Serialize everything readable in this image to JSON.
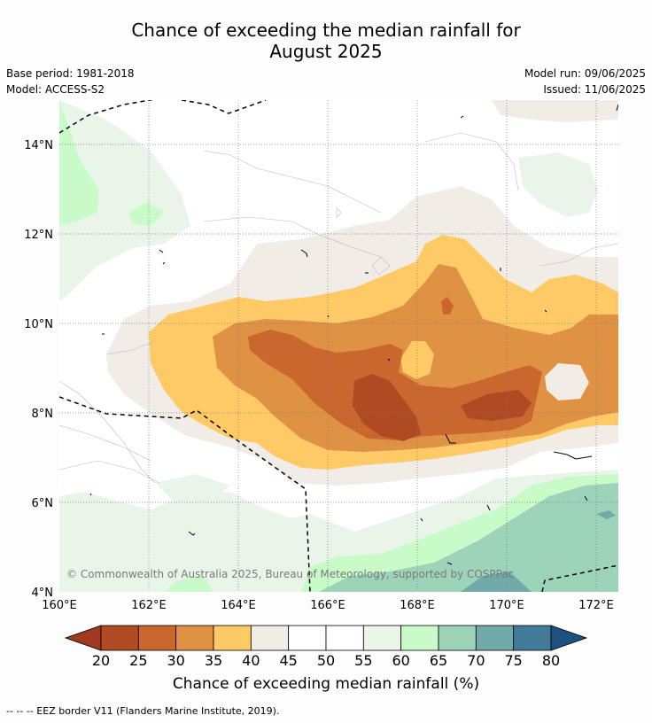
{
  "title": {
    "line1": "Chance of exceeding the median rainfall for",
    "line2": "August 2025"
  },
  "meta": {
    "base_period": "Base period: 1981-2018",
    "model": "Model: ACCESS-S2",
    "model_run": "Model run: 09/06/2025",
    "issued": "Issued: 11/06/2025"
  },
  "copyright": "© Commonwealth of Australia 2025, Bureau of Meteorology, supported by COSPPac",
  "axes": {
    "lat_labels": [
      "14°N",
      "12°N",
      "10°N",
      "8°N",
      "6°N",
      "4°N"
    ],
    "lon_labels": [
      "160°E",
      "162°E",
      "164°E",
      "166°E",
      "168°E",
      "170°E",
      "172°E"
    ]
  },
  "colorbar": {
    "title": "Chance of exceeding median rainfall (%)",
    "labels": [
      "20",
      "25",
      "30",
      "35",
      "40",
      "45",
      "50",
      "55",
      "60",
      "65",
      "70",
      "75",
      "80"
    ],
    "colors": [
      "#9f3a1f",
      "#b04a23",
      "#c9672e",
      "#e09244",
      "#fdca65",
      "#f1ece6",
      "#ffffff",
      "#ffffff",
      "#eaf5ea",
      "#c9fbc9",
      "#9dd3b9",
      "#72a9a9",
      "#43799a",
      "#1c5180"
    ]
  },
  "footer": "--  --  -- EEZ border V11 (Flanders Marine Institute, 2019).",
  "map_colors": {
    "c20_25": "#b04a23",
    "c25_30": "#c9672e",
    "c30_35": "#e09244",
    "c35_40": "#fdca65",
    "c40_45": "#f1ece6",
    "c55_60": "#eaf5ea",
    "c60_65": "#c9fbc9",
    "c65_70": "#9dd3b9",
    "c70_75": "#72a9a9"
  }
}
